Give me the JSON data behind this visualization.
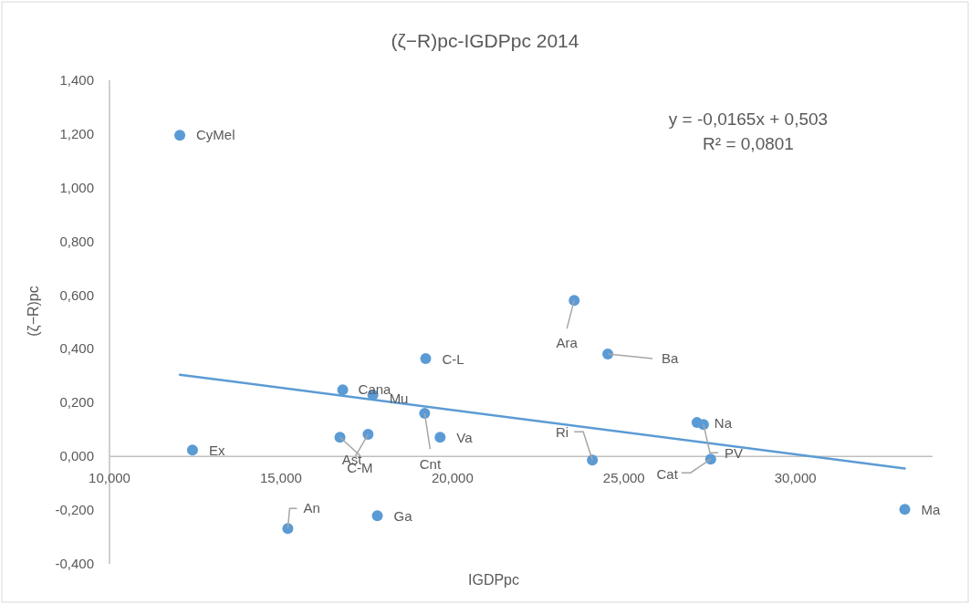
{
  "chart_data": {
    "type": "scatter",
    "title": "(ζ−R)pc-IGDPpc 2014",
    "xlabel": "IGDPpc",
    "ylabel": "(ζ−R)pc",
    "xlim": [
      10,
      34
    ],
    "ylim": [
      -0.4,
      1.4
    ],
    "xticks": [
      {
        "value": 10,
        "label": "10,000"
      },
      {
        "value": 15,
        "label": "15,000"
      },
      {
        "value": 20,
        "label": "20,000"
      },
      {
        "value": 25,
        "label": "25,000"
      },
      {
        "value": 30,
        "label": "30,000"
      }
    ],
    "yticks": [
      {
        "value": -0.4,
        "label": "-0,400"
      },
      {
        "value": -0.2,
        "label": "-0,200"
      },
      {
        "value": 0,
        "label": "0,000"
      },
      {
        "value": 0.2,
        "label": "0,200"
      },
      {
        "value": 0.4,
        "label": "0,400"
      },
      {
        "value": 0.6,
        "label": "0,600"
      },
      {
        "value": 0.8,
        "label": "0,800"
      },
      {
        "value": 1,
        "label": "1,000"
      },
      {
        "value": 1.2,
        "label": "1,200"
      },
      {
        "value": 1.4,
        "label": "1,400"
      }
    ],
    "series": [
      {
        "marker": "circle",
        "color": "#5b9bd5",
        "x": [
          12.05,
          12.42,
          15.2,
          16.72,
          17.54,
          16.8,
          17.68,
          17.81,
          19.22,
          19.19,
          19.64,
          23.55,
          24.53,
          24.08,
          27.13,
          27.32,
          27.53,
          33.19
        ],
        "values": [
          1.195,
          0.024,
          -0.268,
          0.071,
          0.082,
          0.248,
          0.228,
          -0.221,
          0.364,
          0.16,
          0.071,
          0.581,
          0.381,
          -0.014,
          0.126,
          0.119,
          -0.01,
          -0.197
        ]
      },
      {
        "type": "line",
        "color": "#5b9bd5",
        "x": [
          12.05,
          33.19
        ],
        "values": [
          0.304,
          -0.045
        ]
      }
    ],
    "annotations": [
      {
        "text": "CyMel",
        "x": 12.05,
        "y": 1.195
      },
      {
        "text": "Ex",
        "x": 12.42,
        "y": 0.024
      },
      {
        "text": "An",
        "x": 15.2,
        "y": -0.268
      },
      {
        "text": "Ast",
        "x": 16.72,
        "y": 0.071
      },
      {
        "text": "C-M",
        "x": 17.54,
        "y": 0.082
      },
      {
        "text": "Cana",
        "x": 16.8,
        "y": 0.248
      },
      {
        "text": "Mu",
        "x": 17.68,
        "y": 0.228
      },
      {
        "text": "Ga",
        "x": 17.81,
        "y": -0.221
      },
      {
        "text": "C-L",
        "x": 19.22,
        "y": 0.364
      },
      {
        "text": "Cnt",
        "x": 19.19,
        "y": 0.16
      },
      {
        "text": "Va",
        "x": 19.64,
        "y": 0.071
      },
      {
        "text": "Ara",
        "x": 23.55,
        "y": 0.581
      },
      {
        "text": "Ba",
        "x": 24.53,
        "y": 0.381
      },
      {
        "text": "Ri",
        "x": 24.08,
        "y": -0.014
      },
      {
        "text": "Na",
        "x": 27.13,
        "y": 0.126
      },
      {
        "text": "PV",
        "x": 27.32,
        "y": 0.119
      },
      {
        "text": "Cat",
        "x": 27.53,
        "y": -0.01
      },
      {
        "text": "Ma",
        "x": 33.19,
        "y": -0.197
      },
      "y = -0,0165x + 0,503",
      "R² = 0,0801"
    ]
  }
}
